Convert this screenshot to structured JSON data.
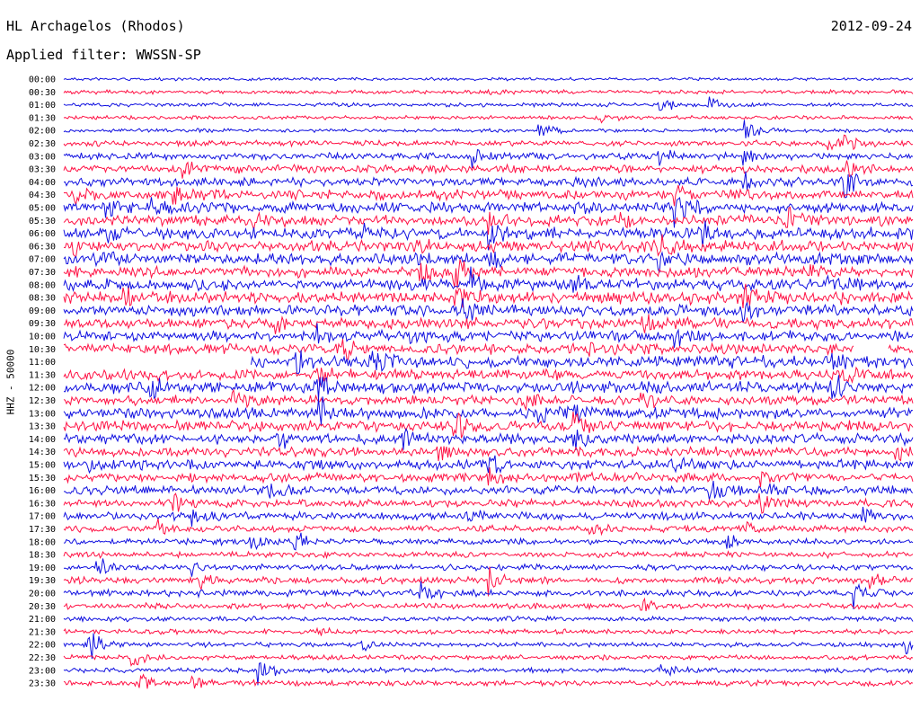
{
  "header": {
    "station": "HL Archagelos (Rhodos)",
    "date": "2012-09-24",
    "filter": "Applied filter: WWSSN-SP"
  },
  "chart_data": {
    "type": "line",
    "title": "HL Archagelos (Rhodos)",
    "ylabel": "HHZ - 50000",
    "colors": {
      "even_rows": "#1010e0",
      "odd_rows": "#ff1144"
    },
    "traces": [
      {
        "label": "00:00",
        "amplitude": 0.15,
        "events": []
      },
      {
        "label": "00:30",
        "amplitude": 0.2,
        "events": [
          {
            "t": 0.5,
            "a": 0.4
          }
        ]
      },
      {
        "label": "01:00",
        "amplitude": 0.2,
        "events": [
          {
            "t": 0.7,
            "a": 1.0
          },
          {
            "t": 0.76,
            "a": 0.9
          }
        ]
      },
      {
        "label": "01:30",
        "amplitude": 0.2,
        "events": [
          {
            "t": 0.63,
            "a": 0.7
          }
        ]
      },
      {
        "label": "02:00",
        "amplitude": 0.2,
        "events": [
          {
            "t": 0.56,
            "a": 1.0
          },
          {
            "t": 0.8,
            "a": 1.3
          }
        ]
      },
      {
        "label": "02:30",
        "amplitude": 0.3,
        "events": [
          {
            "t": 0.9,
            "a": 0.8
          },
          {
            "t": 0.92,
            "a": 0.6
          }
        ]
      },
      {
        "label": "03:00",
        "amplitude": 0.35,
        "events": [
          {
            "t": 0.48,
            "a": 1.0
          },
          {
            "t": 0.7,
            "a": 1.6
          },
          {
            "t": 0.8,
            "a": 1.3
          }
        ]
      },
      {
        "label": "03:30",
        "amplitude": 0.4,
        "events": [
          {
            "t": 0.14,
            "a": 0.8
          },
          {
            "t": 0.2,
            "a": 0.5
          },
          {
            "t": 0.92,
            "a": 0.9
          }
        ]
      },
      {
        "label": "04:00",
        "amplitude": 0.45,
        "events": [
          {
            "t": 0.6,
            "a": 1.0
          },
          {
            "t": 0.8,
            "a": 1.4
          },
          {
            "t": 0.92,
            "a": 1.5
          }
        ]
      },
      {
        "label": "04:30",
        "amplitude": 0.5,
        "events": [
          {
            "t": 0.01,
            "a": 1.0
          },
          {
            "t": 0.13,
            "a": 0.9
          },
          {
            "t": 0.72,
            "a": 1.2
          }
        ]
      },
      {
        "label": "05:00",
        "amplitude": 0.55,
        "events": [
          {
            "t": 0.05,
            "a": 1.0
          },
          {
            "t": 0.1,
            "a": 1.0
          },
          {
            "t": 0.6,
            "a": 0.9
          },
          {
            "t": 0.72,
            "a": 1.5
          }
        ]
      },
      {
        "label": "05:30",
        "amplitude": 0.55,
        "events": [
          {
            "t": 0.22,
            "a": 0.8
          },
          {
            "t": 0.5,
            "a": 1.0
          },
          {
            "t": 0.65,
            "a": 1.0
          },
          {
            "t": 0.85,
            "a": 1.2
          }
        ]
      },
      {
        "label": "06:00",
        "amplitude": 0.6,
        "events": [
          {
            "t": 0.05,
            "a": 1.0
          },
          {
            "t": 0.35,
            "a": 1.0
          },
          {
            "t": 0.5,
            "a": 1.4
          },
          {
            "t": 0.75,
            "a": 1.2
          }
        ]
      },
      {
        "label": "06:30",
        "amplitude": 0.6,
        "events": [
          {
            "t": 0.01,
            "a": 1.2
          },
          {
            "t": 0.42,
            "a": 1.0
          },
          {
            "t": 0.7,
            "a": 1.5
          }
        ]
      },
      {
        "label": "07:00",
        "amplitude": 0.6,
        "events": [
          {
            "t": 0.05,
            "a": 0.8
          },
          {
            "t": 0.5,
            "a": 1.2
          },
          {
            "t": 0.7,
            "a": 1.2
          }
        ]
      },
      {
        "label": "07:30",
        "amplitude": 0.55,
        "events": [
          {
            "t": 0.42,
            "a": 1.0
          },
          {
            "t": 0.46,
            "a": 1.3
          },
          {
            "t": 0.88,
            "a": 0.9
          }
        ]
      },
      {
        "label": "08:00",
        "amplitude": 0.6,
        "events": [
          {
            "t": 0.48,
            "a": 1.5
          },
          {
            "t": 0.6,
            "a": 1.0
          },
          {
            "t": 0.9,
            "a": 0.9
          }
        ]
      },
      {
        "label": "08:30",
        "amplitude": 0.65,
        "events": [
          {
            "t": 0.07,
            "a": 0.9
          },
          {
            "t": 0.46,
            "a": 1.6
          },
          {
            "t": 0.8,
            "a": 1.4
          }
        ]
      },
      {
        "label": "09:00",
        "amplitude": 0.55,
        "events": [
          {
            "t": 0.47,
            "a": 1.5
          },
          {
            "t": 0.8,
            "a": 1.1
          }
        ]
      },
      {
        "label": "09:30",
        "amplitude": 0.55,
        "events": [
          {
            "t": 0.25,
            "a": 0.8
          },
          {
            "t": 0.68,
            "a": 1.0
          }
        ]
      },
      {
        "label": "10:00",
        "amplitude": 0.55,
        "events": [
          {
            "t": 0.3,
            "a": 1.0
          },
          {
            "t": 0.4,
            "a": 1.0
          },
          {
            "t": 0.72,
            "a": 1.2
          }
        ]
      },
      {
        "label": "10:30",
        "amplitude": 0.55,
        "events": [
          {
            "t": 0.33,
            "a": 1.0
          },
          {
            "t": 0.62,
            "a": 1.0
          }
        ],
        "gap": [
          0.93,
          0.97
        ]
      },
      {
        "label": "11:00",
        "amplitude": 0.6,
        "events": [
          {
            "t": 0.27,
            "a": 1.4
          },
          {
            "t": 0.36,
            "a": 1.3
          },
          {
            "t": 0.9,
            "a": 1.5
          }
        ],
        "gap": [
          0.0,
          0.22
        ]
      },
      {
        "label": "11:30",
        "amplitude": 0.55,
        "events": [
          {
            "t": 0.3,
            "a": 1.2
          },
          {
            "t": 0.92,
            "a": 1.4
          }
        ]
      },
      {
        "label": "12:00",
        "amplitude": 0.6,
        "events": [
          {
            "t": 0.1,
            "a": 0.8
          },
          {
            "t": 0.3,
            "a": 1.5
          },
          {
            "t": 0.9,
            "a": 1.5
          }
        ]
      },
      {
        "label": "12:30",
        "amplitude": 0.5,
        "events": [
          {
            "t": 0.2,
            "a": 1.0
          },
          {
            "t": 0.54,
            "a": 1.2
          },
          {
            "t": 0.68,
            "a": 1.0
          }
        ]
      },
      {
        "label": "13:00",
        "amplitude": 0.55,
        "events": [
          {
            "t": 0.3,
            "a": 1.5
          },
          {
            "t": 0.56,
            "a": 1.4
          },
          {
            "t": 0.6,
            "a": 1.2
          }
        ]
      },
      {
        "label": "13:30",
        "amplitude": 0.55,
        "events": [
          {
            "t": 0.46,
            "a": 1.2
          },
          {
            "t": 0.6,
            "a": 1.3
          }
        ]
      },
      {
        "label": "14:00",
        "amplitude": 0.55,
        "events": [
          {
            "t": 0.25,
            "a": 1.3
          },
          {
            "t": 0.4,
            "a": 1.2
          },
          {
            "t": 0.6,
            "a": 1.4
          }
        ]
      },
      {
        "label": "14:30",
        "amplitude": 0.5,
        "events": [
          {
            "t": 0.44,
            "a": 1.0
          },
          {
            "t": 0.98,
            "a": 1.0
          }
        ]
      },
      {
        "label": "15:00",
        "amplitude": 0.5,
        "events": [
          {
            "t": 0.03,
            "a": 0.9
          },
          {
            "t": 0.5,
            "a": 1.2
          },
          {
            "t": 0.72,
            "a": 0.9
          }
        ]
      },
      {
        "label": "15:30",
        "amplitude": 0.45,
        "events": [
          {
            "t": 0.5,
            "a": 0.8
          },
          {
            "t": 0.82,
            "a": 0.9
          }
        ]
      },
      {
        "label": "16:00",
        "amplitude": 0.45,
        "events": [
          {
            "t": 0.24,
            "a": 1.0
          },
          {
            "t": 0.76,
            "a": 1.3
          },
          {
            "t": 0.83,
            "a": 1.4
          }
        ]
      },
      {
        "label": "16:30",
        "amplitude": 0.4,
        "events": [
          {
            "t": 0.13,
            "a": 1.0
          },
          {
            "t": 0.82,
            "a": 1.2
          }
        ]
      },
      {
        "label": "17:00",
        "amplitude": 0.4,
        "events": [
          {
            "t": 0.15,
            "a": 0.9
          },
          {
            "t": 0.47,
            "a": 0.8
          },
          {
            "t": 0.94,
            "a": 0.9
          }
        ]
      },
      {
        "label": "17:30",
        "amplitude": 0.35,
        "events": [
          {
            "t": 0.11,
            "a": 1.0
          },
          {
            "t": 0.62,
            "a": 1.0
          },
          {
            "t": 0.8,
            "a": 0.8
          }
        ]
      },
      {
        "label": "18:00",
        "amplitude": 0.3,
        "events": [
          {
            "t": 0.22,
            "a": 1.0
          },
          {
            "t": 0.27,
            "a": 1.5
          },
          {
            "t": 0.78,
            "a": 0.8
          }
        ]
      },
      {
        "label": "18:30",
        "amplitude": 0.3,
        "events": []
      },
      {
        "label": "19:00",
        "amplitude": 0.3,
        "events": [
          {
            "t": 0.04,
            "a": 1.0
          },
          {
            "t": 0.15,
            "a": 0.8
          }
        ]
      },
      {
        "label": "19:30",
        "amplitude": 0.35,
        "events": [
          {
            "t": 0.16,
            "a": 0.8
          },
          {
            "t": 0.5,
            "a": 1.2
          },
          {
            "t": 0.95,
            "a": 1.0
          }
        ]
      },
      {
        "label": "20:00",
        "amplitude": 0.35,
        "events": [
          {
            "t": 0.42,
            "a": 1.0
          },
          {
            "t": 0.93,
            "a": 1.4
          }
        ]
      },
      {
        "label": "20:30",
        "amplitude": 0.3,
        "events": [
          {
            "t": 0.68,
            "a": 0.8
          }
        ]
      },
      {
        "label": "21:00",
        "amplitude": 0.25,
        "events": []
      },
      {
        "label": "21:30",
        "amplitude": 0.25,
        "events": [
          {
            "t": 0.3,
            "a": 0.6
          }
        ]
      },
      {
        "label": "22:00",
        "amplitude": 0.25,
        "events": [
          {
            "t": 0.03,
            "a": 1.4
          },
          {
            "t": 0.35,
            "a": 0.8
          },
          {
            "t": 0.99,
            "a": 1.3
          }
        ]
      },
      {
        "label": "22:30",
        "amplitude": 0.25,
        "events": [
          {
            "t": 0.08,
            "a": 1.5
          }
        ]
      },
      {
        "label": "23:00",
        "amplitude": 0.25,
        "events": [
          {
            "t": 0.23,
            "a": 1.4
          },
          {
            "t": 0.7,
            "a": 0.7
          }
        ]
      },
      {
        "label": "23:30",
        "amplitude": 0.3,
        "events": [
          {
            "t": 0.09,
            "a": 1.3
          },
          {
            "t": 0.15,
            "a": 1.5
          }
        ]
      }
    ]
  }
}
